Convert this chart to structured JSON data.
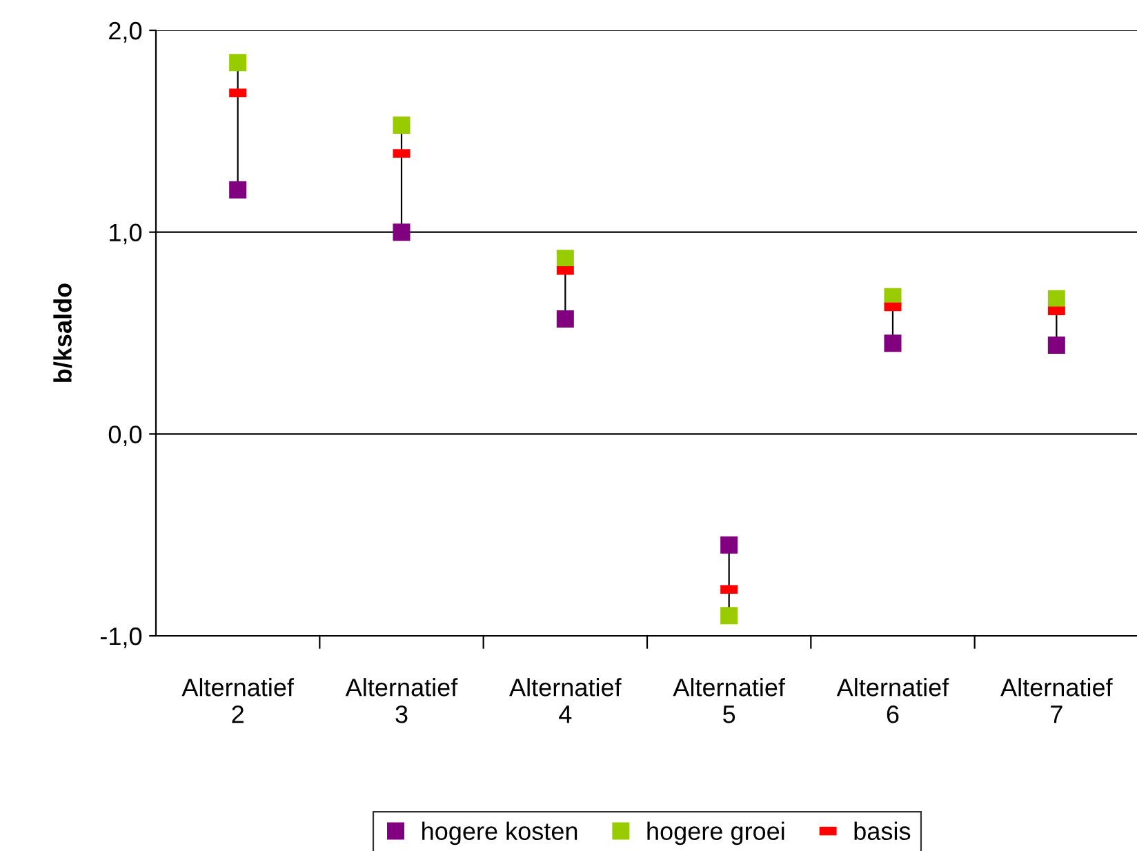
{
  "chart_data": {
    "type": "scatter",
    "ylabel": "b/ksaldo",
    "categories": [
      "Alternatief 2",
      "Alternatief 3",
      "Alternatief 4",
      "Alternatief 5",
      "Alternatief 6",
      "Alternatief 7"
    ],
    "series": [
      {
        "name": "hogere kosten",
        "color": "#800080",
        "marker": "square",
        "values": [
          1.21,
          1.0,
          0.57,
          -0.55,
          0.45,
          0.44
        ]
      },
      {
        "name": "hogere groei",
        "color": "#99cc00",
        "marker": "square",
        "values": [
          1.84,
          1.53,
          0.87,
          -0.9,
          0.68,
          0.67
        ]
      },
      {
        "name": "basis",
        "color": "#ff0000",
        "values": [
          1.69,
          1.39,
          0.81,
          -0.77,
          0.63,
          0.61
        ]
      }
    ],
    "ylim": [
      -1.0,
      2.0
    ],
    "yticks": [
      {
        "value": -1.0,
        "label": "-1,0"
      },
      {
        "value": 0.0,
        "label": "0,0"
      },
      {
        "value": 1.0,
        "label": "1,0"
      },
      {
        "value": 2.0,
        "label": "2,0"
      }
    ],
    "grid": "y",
    "legend": "bottom"
  }
}
